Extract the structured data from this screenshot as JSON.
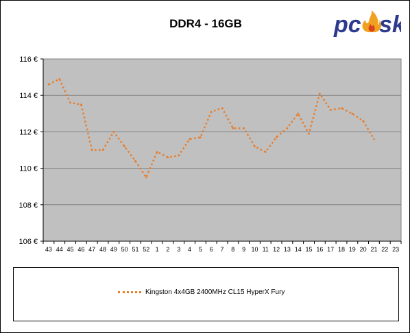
{
  "chart_data": {
    "type": "line",
    "title": "DDR4 - 16GB",
    "ylim": [
      106,
      116
    ],
    "yticks": [
      106,
      108,
      110,
      112,
      114,
      116
    ],
    "ytick_suffix": " €",
    "grid": true,
    "legend_position": "bottom",
    "categories": [
      "43",
      "44",
      "45",
      "46",
      "47",
      "48",
      "49",
      "50",
      "51",
      "52",
      "1",
      "2",
      "3",
      "4",
      "5",
      "6",
      "7",
      "8",
      "9",
      "10",
      "11",
      "12",
      "13",
      "14",
      "15",
      "16",
      "17",
      "18",
      "19",
      "20",
      "21",
      "22",
      "23"
    ],
    "series": [
      {
        "name": "Kingston 4x4GB 2400MHz CL15 HyperX Fury",
        "color": "#e87d2a",
        "values": [
          114.6,
          114.9,
          113.6,
          113.5,
          111.0,
          111.0,
          112.0,
          111.2,
          110.4,
          109.5,
          110.9,
          110.6,
          110.7,
          111.6,
          111.7,
          113.1,
          113.3,
          112.2,
          112.2,
          111.2,
          110.9,
          111.7,
          112.2,
          113.0,
          111.9,
          114.1,
          113.2,
          113.3,
          113.0,
          112.6,
          111.6,
          null,
          null
        ]
      }
    ]
  },
  "logo": {
    "text_pc": "pc",
    "text_sk": "sk",
    "color_main": "#2e3a8c",
    "color_flame": "#f2a020"
  }
}
